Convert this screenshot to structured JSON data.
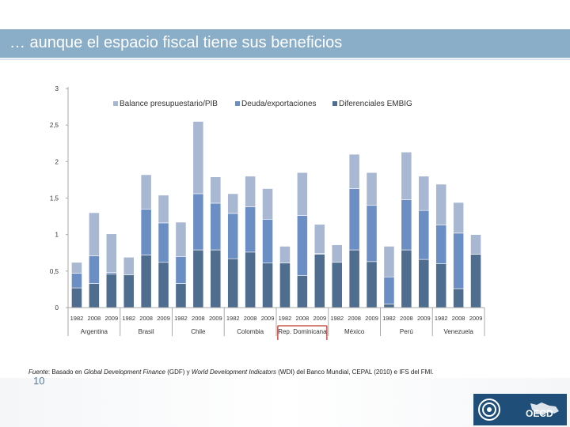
{
  "slide": {
    "title": "… aunque el espacio fiscal tiene sus beneficios",
    "page_number": "10",
    "source_parts": [
      {
        "text": "Fuente",
        "italic": true
      },
      {
        "text": ": Basado en ",
        "italic": false
      },
      {
        "text": "Global Development Finance",
        "italic": true
      },
      {
        "text": " (GDF) y ",
        "italic": false
      },
      {
        "text": "World Development Indicators",
        "italic": true
      },
      {
        "text": " (WDI) del Banco Mundial, CEPAL (2010) e IFS del FMI.",
        "italic": false
      }
    ],
    "logo_text": "OECD"
  },
  "colors": {
    "title_bar": "#8aaec8",
    "highlight_box": "#c0392b"
  },
  "chart_data": {
    "type": "bar",
    "stacked": true,
    "ylim": [
      0,
      3
    ],
    "yticks": [
      "0",
      "0,5",
      "1",
      "1,5",
      "2",
      "2,5",
      "3"
    ],
    "years": [
      "1982",
      "2008",
      "2009"
    ],
    "countries": [
      "Argentina",
      "Brasil",
      "Chile",
      "Colombia",
      "Rep. Dominicana",
      "México",
      "Perú",
      "Venezuela"
    ],
    "highlighted_country": "Rep. Dominicana",
    "legend_position": "top",
    "series": [
      {
        "name": "Diferenciales EMBIG",
        "color": "#4f6d8f",
        "values": [
          0.27,
          0.33,
          0.46,
          0.45,
          0.72,
          0.62,
          0.33,
          0.79,
          0.79,
          0.67,
          0.76,
          0.61,
          0.61,
          0.44,
          0.73,
          0.62,
          0.79,
          0.63,
          0.05,
          0.79,
          0.66,
          0.6,
          0.26,
          0.73
        ]
      },
      {
        "name": "Deuda/exportaciones",
        "color": "#6b8fc4",
        "values": [
          0.2,
          0.38,
          0.02,
          0.0,
          0.63,
          0.54,
          0.37,
          0.77,
          0.64,
          0.62,
          0.62,
          0.6,
          0.0,
          0.82,
          0.01,
          0.0,
          0.84,
          0.77,
          0.37,
          0.69,
          0.67,
          0.53,
          0.76,
          0.0
        ]
      },
      {
        "name": "Balance presupuestario/PIB",
        "color": "#a9b8d2",
        "values": [
          0.15,
          0.59,
          0.53,
          0.24,
          0.47,
          0.38,
          0.47,
          0.99,
          0.36,
          0.27,
          0.42,
          0.42,
          0.23,
          0.59,
          0.4,
          0.24,
          0.47,
          0.45,
          0.42,
          0.65,
          0.47,
          0.56,
          0.42,
          0.27
        ]
      }
    ]
  }
}
